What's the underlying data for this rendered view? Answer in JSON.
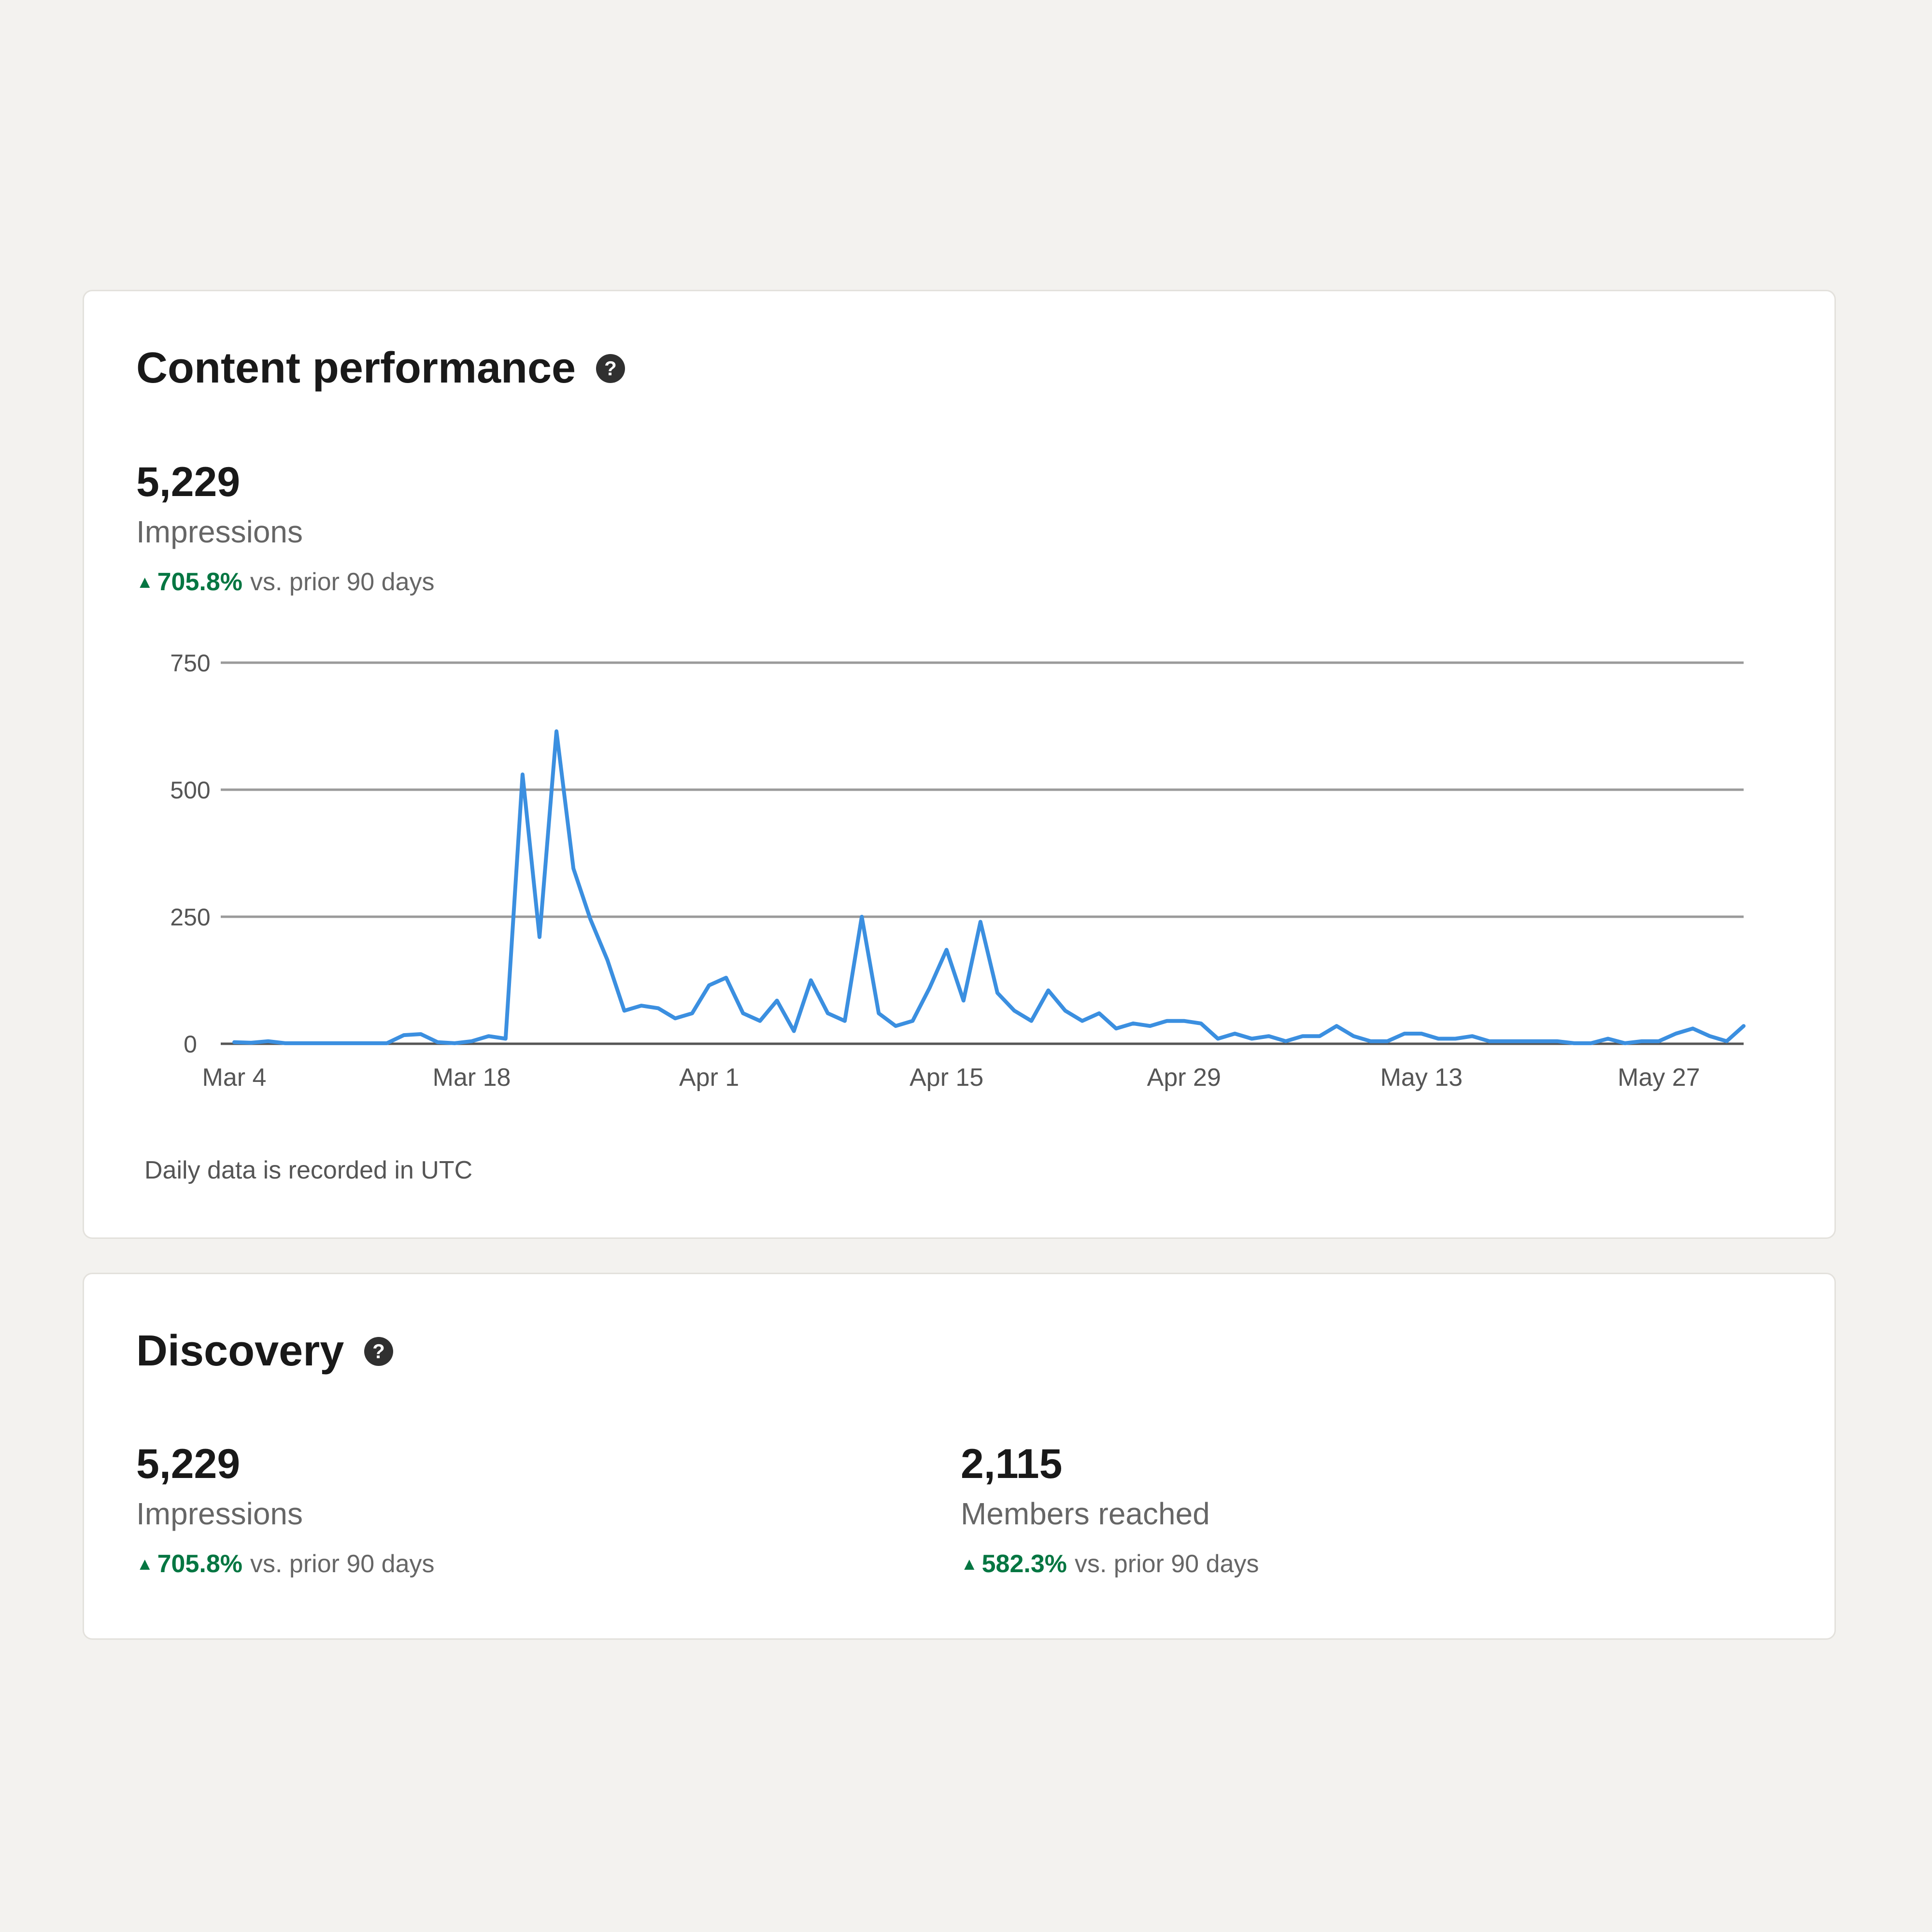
{
  "colors": {
    "background": "#f3f2ef",
    "card": "#ffffff",
    "positive": "#057642",
    "line": "#3b8fe0",
    "grid": "#9a9a9a"
  },
  "content_performance": {
    "title": "Content performance",
    "help_icon": "question-circle-icon",
    "impressions": {
      "value": "5,229",
      "label": "Impressions",
      "arrow": "▲",
      "change": "705.8%",
      "change_text": "vs. prior 90 days"
    },
    "footnote": "Daily data is recorded in UTC"
  },
  "discovery": {
    "title": "Discovery",
    "help_icon": "question-circle-icon",
    "impressions": {
      "value": "5,229",
      "label": "Impressions",
      "arrow": "▲",
      "change": "705.8%",
      "change_text": "vs. prior 90 days"
    },
    "members": {
      "value": "2,115",
      "label": "Members reached",
      "arrow": "▲",
      "change": "582.3%",
      "change_text": "vs. prior 90 days"
    }
  },
  "chart_data": {
    "type": "line",
    "y_ticks": [
      0,
      250,
      500,
      750
    ],
    "ylim": [
      0,
      750
    ],
    "x_tick_labels": [
      "Mar 4",
      "Mar 18",
      "Apr 1",
      "Apr 15",
      "Apr 29",
      "May 13",
      "May 27"
    ],
    "x_tick_days": [
      0,
      14,
      28,
      42,
      56,
      70,
      84
    ],
    "x_range_days": [
      0,
      89
    ],
    "grid": true,
    "series": [
      {
        "values": [
          3,
          2,
          5,
          1,
          1,
          1,
          1,
          1,
          1,
          1,
          17,
          19,
          3,
          1,
          5,
          15,
          10,
          530,
          210,
          615,
          345,
          245,
          165,
          65,
          75,
          70,
          50,
          60,
          115,
          130,
          60,
          45,
          85,
          25,
          125,
          60,
          45,
          250,
          60,
          35,
          45,
          110,
          185,
          85,
          240,
          100,
          65,
          45,
          105,
          65,
          45,
          60,
          30,
          40,
          35,
          45,
          45,
          40,
          10,
          20,
          10,
          15,
          5,
          15,
          15,
          35,
          15,
          5,
          5,
          20,
          20,
          10,
          10,
          15,
          5,
          5,
          5,
          5,
          5,
          1,
          1,
          10,
          1,
          5,
          5,
          20,
          30,
          15,
          5,
          35
        ]
      }
    ]
  }
}
